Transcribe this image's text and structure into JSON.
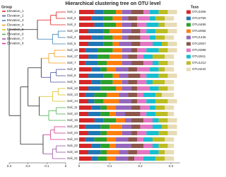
{
  "chart_data": {
    "type": "dendrogram-bar",
    "title": "Hierarchical clustering tree on OTU level",
    "group_title": "Group",
    "groups": [
      {
        "name": "Elevation_1",
        "color": "#e41a1c"
      },
      {
        "name": "Elevation_2",
        "color": "#4b4f9e"
      },
      {
        "name": "Elevation_3",
        "color": "#377eb8"
      },
      {
        "name": "Elevation_4",
        "color": "#f39c12"
      },
      {
        "name": "Elevation_5",
        "color": "#d4c21a"
      },
      {
        "name": "Elevation_6",
        "color": "#4daf4a"
      },
      {
        "name": "Elevation_7",
        "color": "#984ea3"
      },
      {
        "name": "Elevation_8",
        "color": "#d6338a"
      }
    ],
    "samples": [
      "Soil_1",
      "Soil_2",
      "Soil_3",
      "Soil_18",
      "Soil_4",
      "Soil_5",
      "Soil_16",
      "Soil_17",
      "Soil_7",
      "Soil_8",
      "Soil_6",
      "Soil_9",
      "Soil_12",
      "Soil_13",
      "Soil_14",
      "Soil_11",
      "Soil_10",
      "Soil_15",
      "Soil_20",
      "Soil_23",
      "Soil_24",
      "Soil_22",
      "Soil_19",
      "Soil_21"
    ],
    "sample_groups": [
      0,
      0,
      0,
      2,
      2,
      2,
      3,
      3,
      3,
      1,
      1,
      1,
      4,
      4,
      4,
      5,
      5,
      5,
      7,
      7,
      7,
      6,
      6,
      6
    ],
    "merges": [
      [
        0,
        1,
        0.05
      ],
      [
        24,
        2,
        0.08
      ],
      [
        3,
        4,
        0.04
      ],
      [
        26,
        5,
        0.07
      ],
      [
        6,
        7,
        0.06
      ],
      [
        28,
        8,
        0.09
      ],
      [
        9,
        10,
        0.05
      ],
      [
        30,
        11,
        0.08
      ],
      [
        12,
        13,
        0.04
      ],
      [
        32,
        14,
        0.07
      ],
      [
        15,
        16,
        0.05
      ],
      [
        34,
        17,
        0.09
      ],
      [
        18,
        19,
        0.06
      ],
      [
        36,
        20,
        0.08
      ],
      [
        21,
        22,
        0.05
      ],
      [
        38,
        23,
        0.07
      ],
      [
        25,
        27,
        0.15
      ],
      [
        29,
        31,
        0.13
      ],
      [
        33,
        35,
        0.14
      ],
      [
        37,
        39,
        0.12
      ],
      [
        41,
        42,
        0.2
      ],
      [
        44,
        43,
        0.24
      ],
      [
        40,
        45,
        0.3
      ]
    ],
    "tree_xlim": [
      0.3,
      0
    ],
    "tree_xticks": [
      0.3,
      0.2,
      0.1,
      0
    ],
    "xlim": [
      0,
      0.33
    ],
    "xticks": [
      0,
      0.1,
      0.2,
      0.3
    ],
    "legend_title": "Taxa",
    "series": [
      {
        "name": "OTU1006",
        "color": "#d62728",
        "values": [
          0.05,
          0.04,
          0.05,
          0.03,
          0.04,
          0.03,
          0.02,
          0.03,
          0.02,
          0.04,
          0.03,
          0.04,
          0.03,
          0.02,
          0.03,
          0.04,
          0.03,
          0.05,
          0.02,
          0.03,
          0.02,
          0.04,
          0.03,
          0.04
        ]
      },
      {
        "name": "OTU2759",
        "color": "#1f77b4",
        "values": [
          0.03,
          0.04,
          0.03,
          0.05,
          0.04,
          0.05,
          0.04,
          0.03,
          0.04,
          0.03,
          0.05,
          0.03,
          0.04,
          0.03,
          0.02,
          0.03,
          0.04,
          0.03,
          0.05,
          0.04,
          0.03,
          0.03,
          0.04,
          0.02
        ]
      },
      {
        "name": "OTU4495",
        "color": "#2ca02c",
        "values": [
          0.04,
          0.03,
          0.04,
          0.02,
          0.03,
          0.03,
          0.05,
          0.04,
          0.03,
          0.02,
          0.03,
          0.04,
          0.05,
          0.04,
          0.03,
          0.02,
          0.03,
          0.04,
          0.03,
          0.02,
          0.04,
          0.03,
          0.02,
          0.03
        ]
      },
      {
        "name": "OTU2056",
        "color": "#ff7f0e",
        "values": [
          0.02,
          0.03,
          0.02,
          0.04,
          0.03,
          0.02,
          0.03,
          0.04,
          0.05,
          0.03,
          0.02,
          0.03,
          0.02,
          0.04,
          0.05,
          0.03,
          0.02,
          0.03,
          0.04,
          0.05,
          0.03,
          0.02,
          0.04,
          0.03
        ]
      },
      {
        "name": "OTU1435",
        "color": "#9467bd",
        "values": [
          0.03,
          0.02,
          0.03,
          0.03,
          0.02,
          0.04,
          0.03,
          0.02,
          0.03,
          0.04,
          0.03,
          0.02,
          0.03,
          0.03,
          0.04,
          0.05,
          0.03,
          0.02,
          0.03,
          0.03,
          0.04,
          0.05,
          0.03,
          0.04
        ]
      },
      {
        "name": "OTU2057",
        "color": "#8c564b",
        "values": [
          0.04,
          0.03,
          0.02,
          0.03,
          0.04,
          0.03,
          0.02,
          0.03,
          0.04,
          0.03,
          0.04,
          0.03,
          0.02,
          0.03,
          0.02,
          0.03,
          0.05,
          0.04,
          0.03,
          0.02,
          0.03,
          0.04,
          0.03,
          0.02
        ]
      },
      {
        "name": "OTU3398",
        "color": "#e377c2",
        "values": [
          0.02,
          0.04,
          0.03,
          0.02,
          0.03,
          0.04,
          0.03,
          0.02,
          0.03,
          0.04,
          0.02,
          0.03,
          0.04,
          0.02,
          0.03,
          0.03,
          0.02,
          0.03,
          0.04,
          0.03,
          0.02,
          0.03,
          0.04,
          0.03
        ]
      },
      {
        "name": "OTU2611",
        "color": "#17becf",
        "values": [
          0.03,
          0.02,
          0.04,
          0.03,
          0.02,
          0.03,
          0.04,
          0.03,
          0.02,
          0.03,
          0.04,
          0.02,
          0.03,
          0.04,
          0.03,
          0.02,
          0.03,
          0.02,
          0.03,
          0.04,
          0.03,
          0.02,
          0.03,
          0.04
        ]
      },
      {
        "name": "OTU1212",
        "color": "#bcbd22",
        "values": [
          0.03,
          0.03,
          0.02,
          0.04,
          0.03,
          0.02,
          0.03,
          0.04,
          0.03,
          0.02,
          0.03,
          0.04,
          0.03,
          0.02,
          0.04,
          0.03,
          0.04,
          0.03,
          0.02,
          0.03,
          0.04,
          0.03,
          0.02,
          0.03
        ]
      },
      {
        "name": "OTU4242",
        "color": "#e8dcb5",
        "values": [
          0.03,
          0.03,
          0.04,
          0.03,
          0.03,
          0.03,
          0.03,
          0.03,
          0.02,
          0.03,
          0.03,
          0.03,
          0.02,
          0.04,
          0.03,
          0.03,
          0.02,
          0.03,
          0.03,
          0.03,
          0.03,
          0.02,
          0.03,
          0.03
        ]
      }
    ]
  }
}
